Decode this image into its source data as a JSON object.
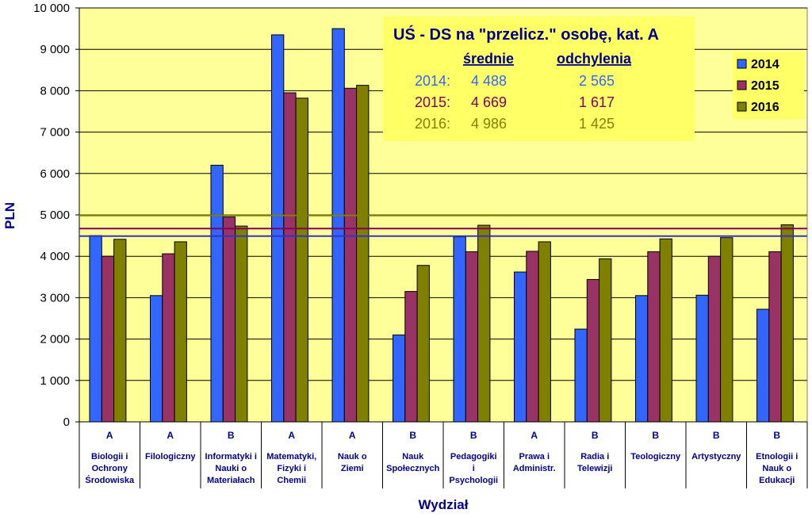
{
  "chart_data": {
    "type": "bar",
    "title": "UŚ - DS na \"przelicz.\" osobę, kat. A",
    "xlabel": "Wydział",
    "ylabel": "PLN",
    "ylim": [
      0,
      10000
    ],
    "yticks": [
      0,
      1000,
      2000,
      3000,
      4000,
      5000,
      6000,
      7000,
      8000,
      9000,
      10000
    ],
    "ytick_labels": [
      "0",
      "1 000",
      "2 000",
      "3 000",
      "4 000",
      "5 000",
      "6 000",
      "7 000",
      "8 000",
      "9 000",
      "10 000"
    ],
    "grid": "horizontal",
    "legend_position": "top-right",
    "categories": [
      "Biologii i Ochrony Środowiska",
      "Filologiczny",
      "Informatyki i Nauki o Materiałach",
      "Matematyki, Fizyki i Chemii",
      "Nauk o Ziemi",
      "Nauk Społecznych",
      "Pedagogiki i Psychologii",
      "Prawa i Administr.",
      "Radia i Telewizji",
      "Teologiczny",
      "Artystyczny",
      "Etnologii i Nauk o Edukacji"
    ],
    "category_lines": [
      [
        "Biologii i",
        "Ochrony",
        "Środowiska"
      ],
      [
        "Filologiczny"
      ],
      [
        "Informatyki i",
        "Nauki o",
        "Materiałach"
      ],
      [
        "Matematyki,",
        "Fizyki i",
        "Chemii"
      ],
      [
        "Nauk o",
        "Ziemi"
      ],
      [
        "Nauk",
        "Społecznych"
      ],
      [
        "Pedagogiki",
        "i",
        "Psychologii"
      ],
      [
        "Prawa i",
        "Administr."
      ],
      [
        "Radia i",
        "Telewizji"
      ],
      [
        "Teologiczny"
      ],
      [
        "Artystyczny"
      ],
      [
        "Etnologii i",
        "Nauk o",
        "Edukacji"
      ]
    ],
    "category_groups": [
      "A",
      "A",
      "B",
      "A",
      "A",
      "B",
      "B",
      "A",
      "B",
      "B",
      "B",
      "B"
    ],
    "series": [
      {
        "name": "2014",
        "color": "#3366ff",
        "values": [
          4500,
          3050,
          6200,
          9350,
          9500,
          2100,
          4470,
          3620,
          2240,
          3050,
          3060,
          2720
        ]
      },
      {
        "name": "2015",
        "color": "#993366",
        "values": [
          4000,
          4060,
          4950,
          7950,
          8060,
          3150,
          4110,
          4120,
          3440,
          4110,
          4000,
          4110
        ]
      },
      {
        "name": "2016",
        "color": "#808000",
        "values": [
          4410,
          4350,
          4730,
          7820,
          8130,
          3780,
          4750,
          4350,
          3940,
          4420,
          4450,
          4760
        ]
      }
    ],
    "reference_lines": [
      {
        "label": "2014",
        "value": 4488,
        "color": "#3333cc"
      },
      {
        "label": "2015",
        "value": 4669,
        "color": "#800060"
      },
      {
        "label": "2016",
        "value": 4986,
        "color": "#808000"
      }
    ],
    "info_box": {
      "title": "UŚ - DS na \"przelicz.\" osobę, kat. A",
      "col_mean": "średnie",
      "col_std": "odchylenia",
      "rows": [
        {
          "label": "2014:",
          "mean": "4 488",
          "std": "2 565",
          "color": "#3366ff"
        },
        {
          "label": "2015:",
          "mean": "4 669",
          "std": "1 617",
          "color": "#800060"
        },
        {
          "label": "2016:",
          "mean": "4 986",
          "std": "1 425",
          "color": "#808000"
        }
      ]
    }
  },
  "colors": {
    "plot_background": "#ffff99",
    "info_box_background": "#ffff66",
    "legend_background": "#ffff66",
    "label_text": "#00008b"
  }
}
